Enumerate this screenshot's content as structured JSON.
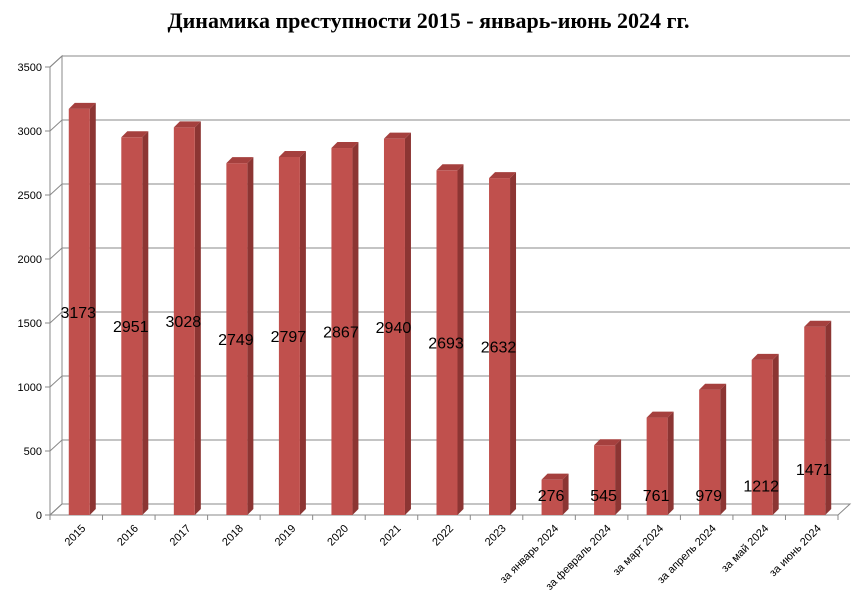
{
  "chart_data": {
    "type": "bar",
    "title": "Динамика преступности 2015 - январь-июнь 2024 гг.",
    "xlabel": "",
    "ylabel": "",
    "ylim": [
      0,
      3500
    ],
    "yticks": [
      0,
      500,
      1000,
      1500,
      2000,
      2500,
      3000,
      3500
    ],
    "grid": true,
    "legend": "none",
    "bar_color": "#c0504d",
    "categories": [
      "2015",
      "2016",
      "2017",
      "2018",
      "2019",
      "2020",
      "2021",
      "2022",
      "2023",
      "за январь 2024",
      "за февраль 2024",
      "за март 2024",
      "за апрель 2024",
      "за май 2024",
      "за июнь 2024"
    ],
    "values": [
      3173,
      2951,
      3028,
      2749,
      2797,
      2867,
      2940,
      2693,
      2632,
      276,
      545,
      761,
      979,
      1212,
      1471
    ]
  }
}
